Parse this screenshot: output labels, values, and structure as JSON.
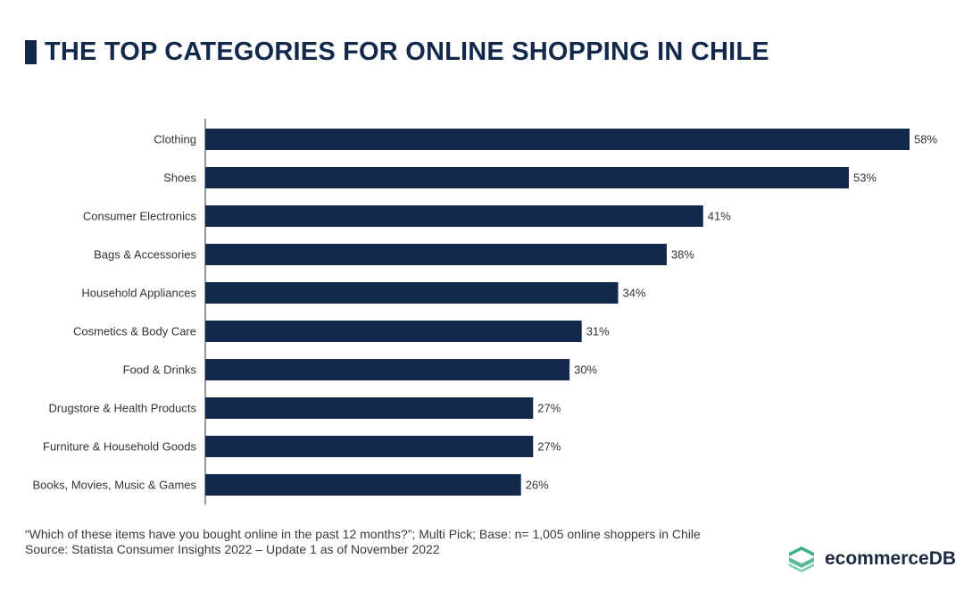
{
  "title": "THE TOP CATEGORIES FOR ONLINE SHOPPING IN CHILE",
  "chart_data": {
    "type": "bar",
    "orientation": "horizontal",
    "title": "THE TOP CATEGORIES FOR ONLINE SHOPPING IN CHILE",
    "categories": [
      "Clothing",
      "Shoes",
      "Consumer Electronics",
      "Bags & Accessories",
      "Household Appliances",
      "Cosmetics & Body Care",
      "Food & Drinks",
      "Drugstore & Health Products",
      "Furniture & Household Goods",
      "Books, Movies, Music & Games"
    ],
    "values": [
      58,
      53,
      41,
      38,
      34,
      31,
      30,
      27,
      27,
      26
    ],
    "labels": [
      "58%",
      "53%",
      "41%",
      "38%",
      "34%",
      "31%",
      "30%",
      "27%",
      "27%",
      "26%"
    ],
    "unit": "%",
    "xlim": [
      0,
      58
    ],
    "grid": false,
    "bar_color": "#13294b"
  },
  "footer": {
    "question": "“Which of these items have you bought online in the past 12 months?”; Multi Pick; Base: n= 1,005 online shoppers in Chile",
    "source": "Source: Statista Consumer Insights 2022 – Update 1 as of November 2022"
  },
  "logo": {
    "text": "ecommerceDB",
    "color": "#3dae8a"
  }
}
